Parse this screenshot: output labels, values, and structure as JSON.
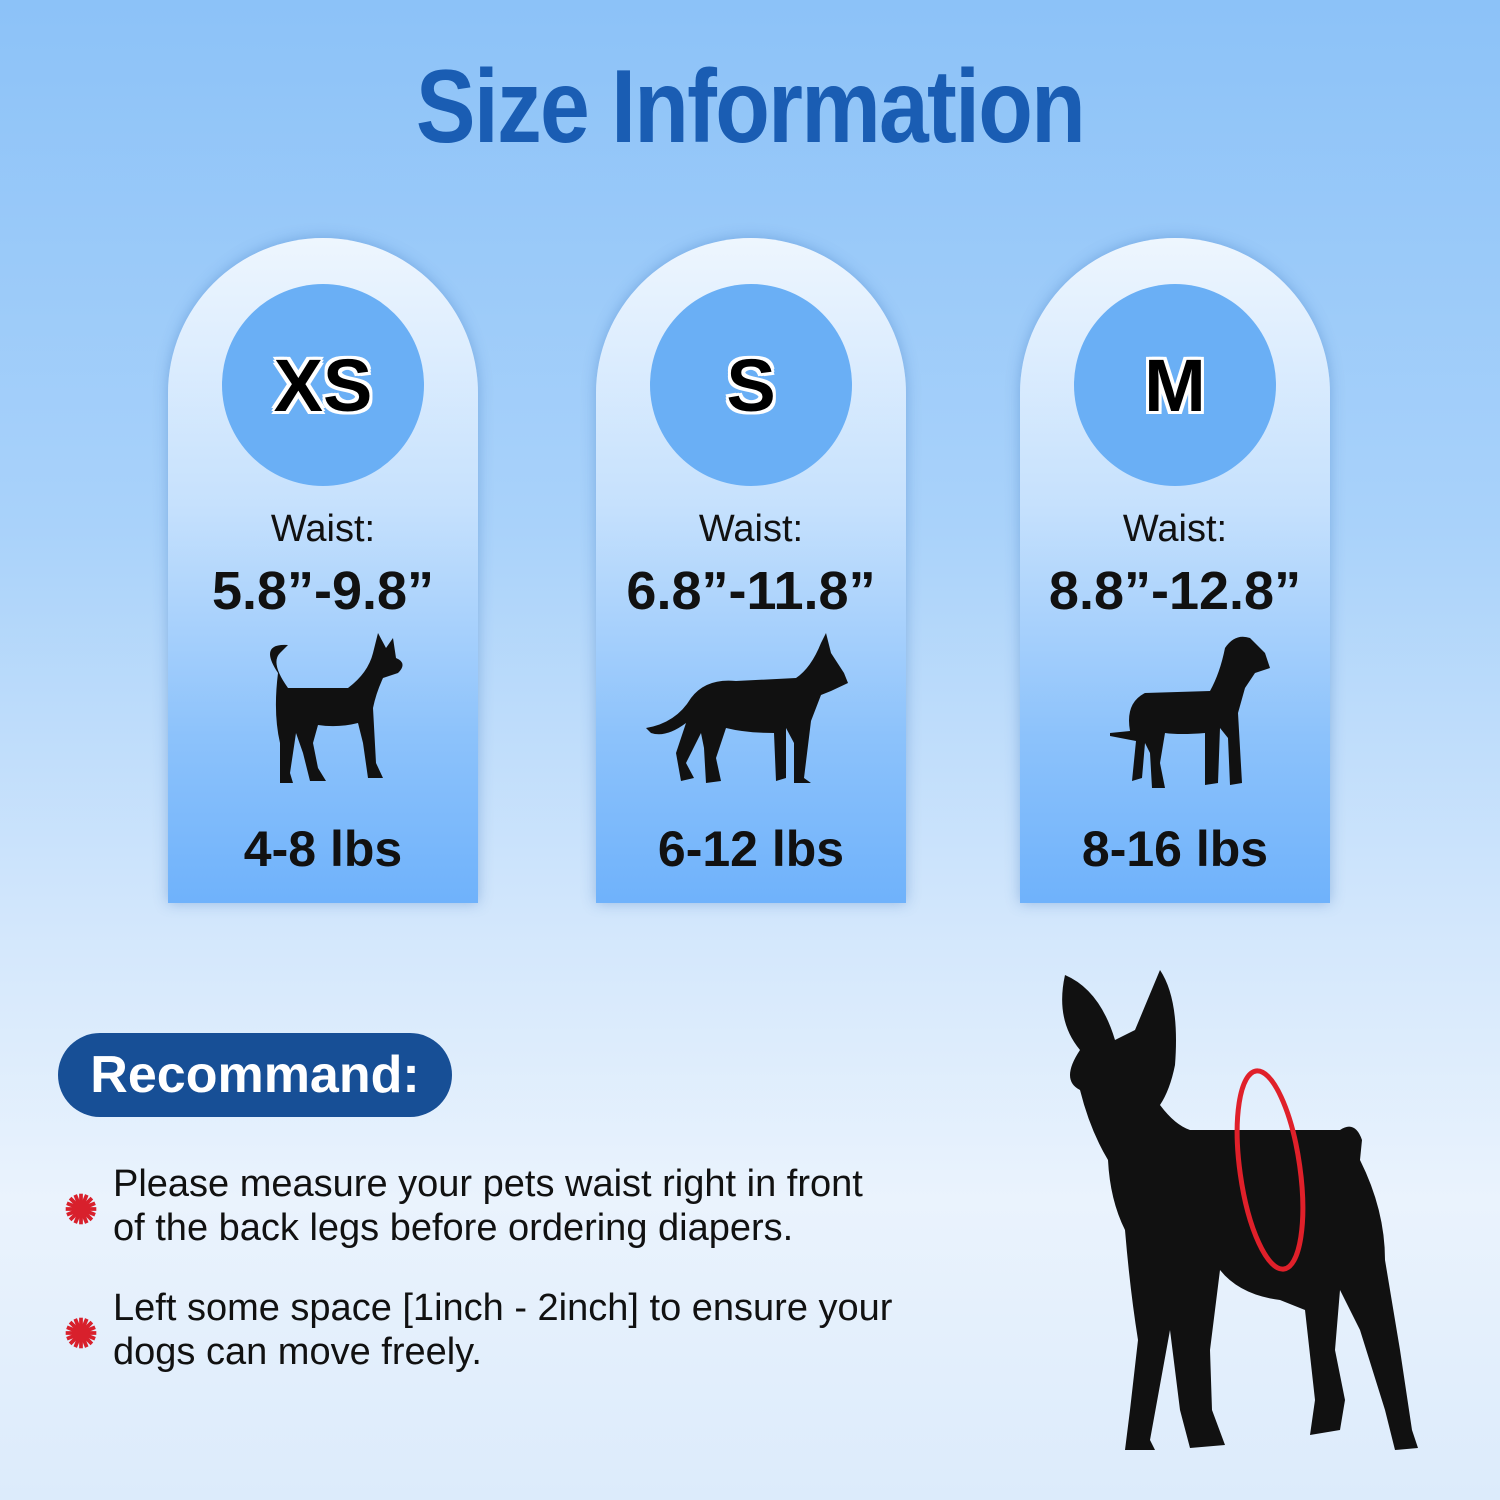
{
  "title": "Size Information",
  "sizes": [
    {
      "label": "XS",
      "waist_label": "Waist:",
      "waist": "5.8”-9.8”",
      "weight": "4-8 lbs",
      "dog_icon": "chihuahua-silhouette-icon"
    },
    {
      "label": "S",
      "waist_label": "Waist:",
      "waist": "6.8”-11.8”",
      "weight": "6-12 lbs",
      "dog_icon": "shepherd-silhouette-icon"
    },
    {
      "label": "M",
      "waist_label": "Waist:",
      "waist": "8.8”-12.8”",
      "weight": "8-16 lbs",
      "dog_icon": "great-dane-silhouette-icon"
    }
  ],
  "recommend": {
    "heading": "Recommand:",
    "tips": [
      {
        "line1": "Please measure your pets waist right in front",
        "line2": "of the back legs before ordering diapers."
      },
      {
        "line1": "Left some space [1inch - 2inch] to ensure your",
        "line2": "dogs can move freely."
      }
    ]
  },
  "colors": {
    "title": "#1a5db3",
    "pill": "#174f96",
    "bullet": "#d8202c",
    "waist_ring": "#e0202a"
  }
}
